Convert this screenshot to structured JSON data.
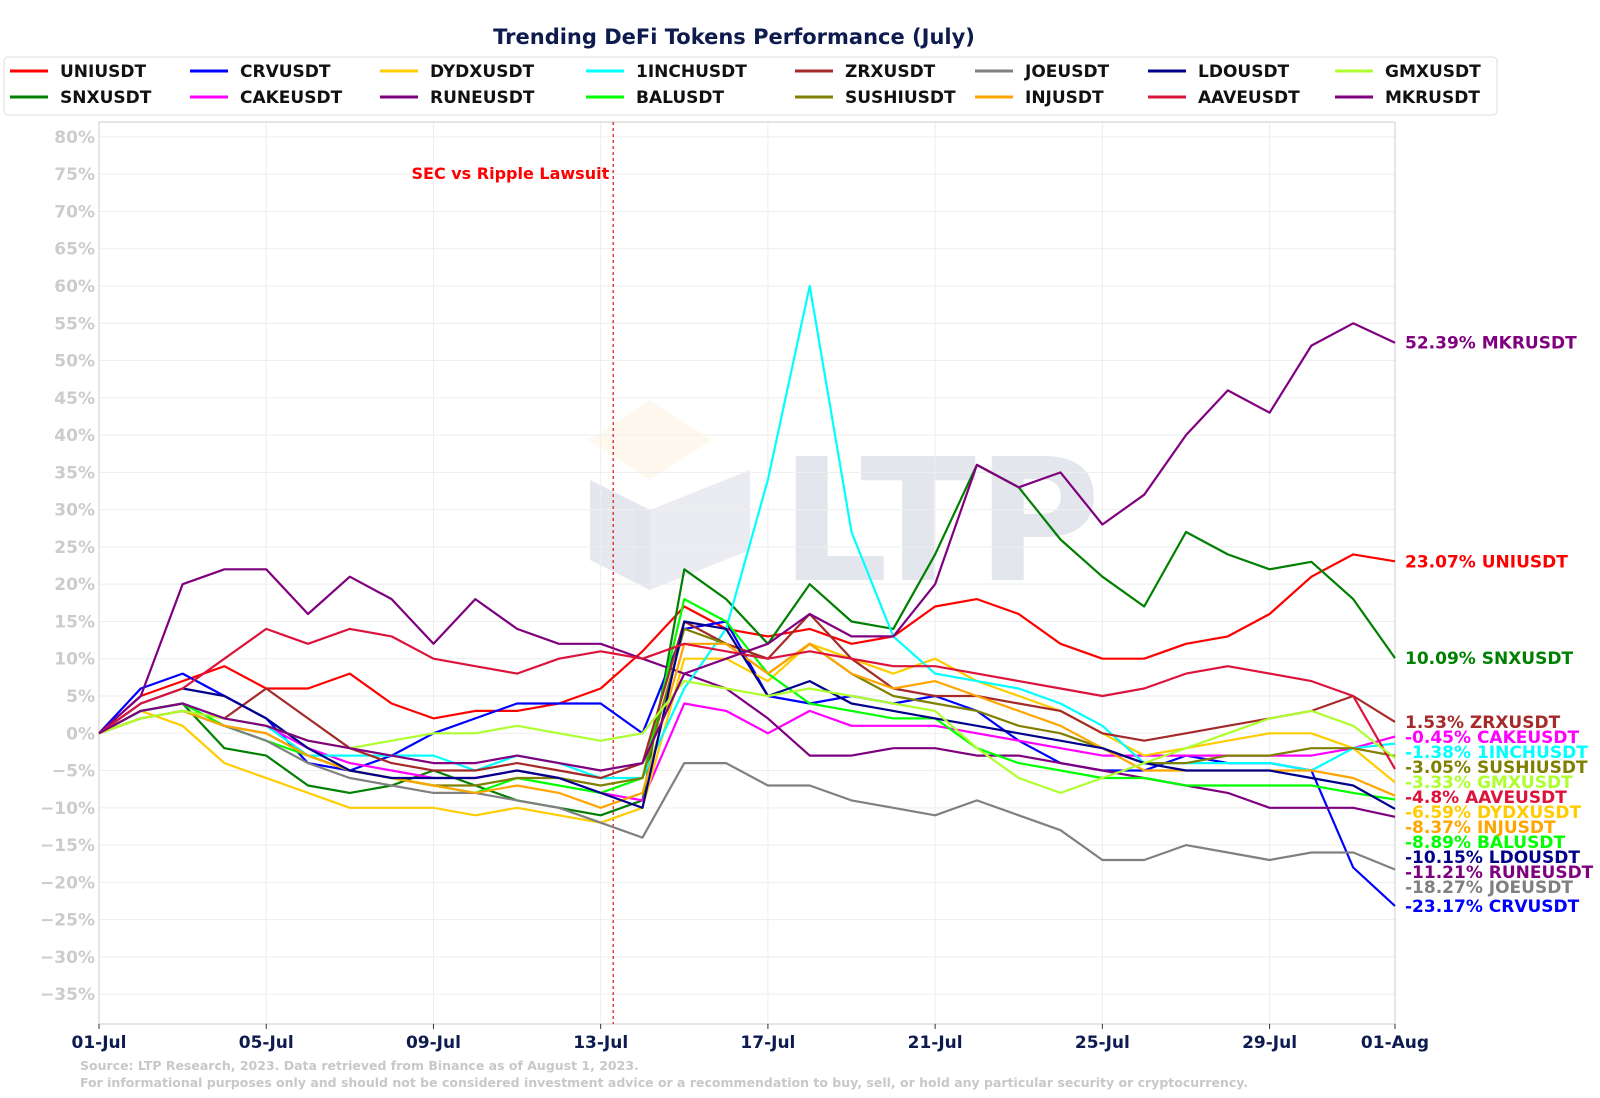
{
  "chart_data": {
    "type": "line",
    "title": "Trending DeFi Tokens Performance (July)",
    "x_ticks": [
      "01-Jul",
      "05-Jul",
      "09-Jul",
      "13-Jul",
      "17-Jul",
      "21-Jul",
      "25-Jul",
      "29-Jul",
      "01-Aug"
    ],
    "x_days": [
      0,
      1,
      2,
      3,
      4,
      5,
      6,
      7,
      8,
      9,
      10,
      11,
      12,
      13,
      14,
      15,
      16,
      17,
      18,
      19,
      20,
      21,
      22,
      23,
      24,
      25,
      26,
      27,
      28,
      29,
      30,
      31
    ],
    "y_ticks": [
      "80%",
      "75%",
      "70%",
      "65%",
      "60%",
      "55%",
      "50%",
      "45%",
      "40%",
      "35%",
      "30%",
      "25%",
      "20%",
      "15%",
      "10%",
      "5%",
      "0%",
      "−5%",
      "−10%",
      "−15%",
      "−20%",
      "−25%",
      "−30%",
      "−35%"
    ],
    "ylim": [
      -39,
      82
    ],
    "grid": true,
    "legend_placement": "top",
    "annotation": {
      "text": "SEC vs Ripple Lawsuit",
      "x_day": 12.3
    },
    "watermark": "LTP",
    "series": [
      {
        "name": "UNIUSDT",
        "color": "#ff0000",
        "end_label": "23.07% UNIUSDT",
        "values": [
          0,
          5,
          7,
          9,
          6,
          6,
          8,
          4,
          2,
          3,
          3,
          4,
          6,
          11,
          17,
          14,
          13,
          14,
          12,
          13,
          17,
          18,
          16,
          12,
          10,
          10,
          12,
          13,
          16,
          21,
          24,
          23.07
        ]
      },
      {
        "name": "SNXUSDT",
        "color": "#008000",
        "end_label": "10.09% SNXUSDT",
        "values": [
          0,
          3,
          4,
          -2,
          -3,
          -7,
          -8,
          -7,
          -5,
          -7,
          -9,
          -10,
          -11,
          -9,
          22,
          18,
          12,
          20,
          15,
          14,
          24,
          36,
          33,
          26,
          21,
          17,
          27,
          24,
          22,
          23,
          18,
          10.09
        ]
      },
      {
        "name": "CRVUSDT",
        "color": "#0000ff",
        "end_label": "-23.17% CRVUSDT",
        "values": [
          0,
          6,
          8,
          5,
          2,
          -4,
          -5,
          -3,
          0,
          2,
          4,
          4,
          4,
          0,
          14,
          15,
          5,
          4,
          5,
          4,
          5,
          3,
          -1,
          -4,
          -5,
          -5,
          -3,
          -4,
          -4,
          -5,
          -18,
          -23.17
        ]
      },
      {
        "name": "CAKEUSDT",
        "color": "#ff00ff",
        "end_label": "-0.45% CAKEUSDT",
        "values": [
          0,
          3,
          4,
          2,
          1,
          -2,
          -4,
          -5,
          -6,
          -6,
          -5,
          -6,
          -8,
          -9,
          4,
          3,
          0,
          3,
          1,
          1,
          1,
          0,
          -1,
          -2,
          -3,
          -3,
          -3,
          -3,
          -3,
          -3,
          -2,
          -0.45
        ]
      },
      {
        "name": "DYDXUSDT",
        "color": "#ffcc00",
        "end_label": "-6.59% DYDXUSDT",
        "values": [
          0,
          3,
          1,
          -4,
          -6,
          -8,
          -10,
          -10,
          -10,
          -11,
          -10,
          -11,
          -12,
          -10,
          10,
          10,
          7,
          12,
          10,
          8,
          10,
          7,
          5,
          3,
          0,
          -3,
          -2,
          -1,
          0,
          0,
          -2,
          -6.59
        ]
      },
      {
        "name": "RUNEUSDT",
        "color": "#7f007f",
        "end_label": "-11.21% RUNEUSDT",
        "values": [
          0,
          5,
          20,
          22,
          22,
          16,
          21,
          18,
          12,
          18,
          14,
          12,
          12,
          10,
          8,
          6,
          2,
          -3,
          -3,
          -2,
          -2,
          -3,
          -3,
          -4,
          -5,
          -6,
          -7,
          -8,
          -10,
          -10,
          -10,
          -11.21
        ]
      },
      {
        "name": "1INCHUSDT",
        "color": "#00ffff",
        "end_label": "-1.38% 1INCHUSDT",
        "values": [
          0,
          3,
          4,
          2,
          1,
          -3,
          -3,
          -3,
          -3,
          -5,
          -3,
          -4,
          -6,
          -6,
          6,
          14,
          34,
          60,
          27,
          13,
          8,
          7,
          6,
          4,
          1,
          -4,
          -4,
          -4,
          -4,
          -5,
          -2,
          -1.38
        ]
      },
      {
        "name": "BALUSDT",
        "color": "#00ff00",
        "end_label": "-8.89% BALUSDT",
        "values": [
          0,
          3,
          4,
          1,
          -1,
          -3,
          -5,
          -6,
          -7,
          -8,
          -6,
          -7,
          -8,
          -6,
          18,
          15,
          8,
          4,
          3,
          2,
          2,
          -2,
          -4,
          -5,
          -6,
          -6,
          -7,
          -7,
          -7,
          -7,
          -8,
          -8.89
        ]
      },
      {
        "name": "ZRXUSDT",
        "color": "#a52a2a",
        "end_label": "1.53% ZRXUSDT",
        "values": [
          0,
          2,
          3,
          2,
          6,
          2,
          -2,
          -4,
          -5,
          -5,
          -4,
          -5,
          -6,
          -4,
          15,
          12,
          10,
          16,
          10,
          6,
          5,
          5,
          4,
          3,
          0,
          -1,
          0,
          1,
          2,
          3,
          5,
          1.53
        ]
      },
      {
        "name": "SUSHIUSDT",
        "color": "#808000",
        "end_label": "-3.05% SUSHIUSDT",
        "values": [
          0,
          2,
          3,
          1,
          0,
          -3,
          -5,
          -6,
          -7,
          -7,
          -6,
          -6,
          -7,
          -6,
          14,
          12,
          8,
          12,
          8,
          5,
          4,
          3,
          1,
          0,
          -2,
          -4,
          -4,
          -3,
          -3,
          -2,
          -2,
          -3.05
        ]
      },
      {
        "name": "JOEUSDT",
        "color": "#808080",
        "end_label": "-18.27% JOEUSDT",
        "values": [
          0,
          2,
          3,
          1,
          -1,
          -4,
          -6,
          -7,
          -8,
          -8,
          -9,
          -10,
          -12,
          -14,
          -4,
          -4,
          -7,
          -7,
          -9,
          -10,
          -11,
          -9,
          -11,
          -13,
          -17,
          -17,
          -15,
          -16,
          -17,
          -16,
          -16,
          -18.27
        ]
      },
      {
        "name": "INJUSDT",
        "color": "#ffa500",
        "end_label": "-8.37% INJUSDT",
        "values": [
          0,
          2,
          3,
          1,
          0,
          -3,
          -5,
          -6,
          -7,
          -8,
          -7,
          -8,
          -10,
          -8,
          12,
          12,
          8,
          12,
          8,
          6,
          7,
          5,
          3,
          1,
          -2,
          -5,
          -5,
          -5,
          -5,
          -5,
          -6,
          -8.37
        ]
      },
      {
        "name": "LDOUSDT",
        "color": "#00008b",
        "end_label": "-10.15% LDOUSDT",
        "values": [
          0,
          4,
          6,
          5,
          2,
          -2,
          -5,
          -6,
          -6,
          -6,
          -5,
          -6,
          -8,
          -10,
          15,
          14,
          5,
          7,
          4,
          3,
          2,
          1,
          0,
          -1,
          -2,
          -4,
          -5,
          -5,
          -5,
          -6,
          -7,
          -10.15
        ]
      },
      {
        "name": "AAVEUSDT",
        "color": "#dc143c",
        "end_label": "-4.8% AAVEUSDT",
        "values": [
          0,
          4,
          6,
          10,
          14,
          12,
          14,
          13,
          10,
          9,
          8,
          10,
          11,
          10,
          12,
          11,
          10,
          11,
          10,
          9,
          9,
          8,
          7,
          6,
          5,
          6,
          8,
          9,
          8,
          7,
          5,
          -4.8
        ]
      },
      {
        "name": "GMXUSDT",
        "color": "#adff2f",
        "end_label": "-3.33% GMXUSDT",
        "values": [
          0,
          2,
          3,
          2,
          1,
          -1,
          -2,
          -1,
          0,
          0,
          1,
          0,
          -1,
          0,
          7,
          6,
          5,
          6,
          5,
          4,
          3,
          -2,
          -6,
          -8,
          -6,
          -4,
          -2,
          0,
          2,
          3,
          1,
          -3.33
        ]
      },
      {
        "name": "MKRUSDT",
        "color": "#800080",
        "end_label": "52.39% MKRUSDT",
        "values": [
          0,
          3,
          4,
          2,
          1,
          -1,
          -2,
          -3,
          -4,
          -4,
          -3,
          -4,
          -5,
          -4,
          8,
          10,
          12,
          16,
          13,
          13,
          20,
          36,
          33,
          35,
          28,
          32,
          40,
          46,
          43,
          52,
          55,
          52.39
        ]
      }
    ]
  },
  "source": {
    "line1": "Source: LTP Research, 2023. Data retrieved from Binance as of August 1, 2023.",
    "line2": "For informational purposes only and should not be considered investment advice or a recommendation to buy, sell, or hold any particular security or cryptocurrency."
  }
}
